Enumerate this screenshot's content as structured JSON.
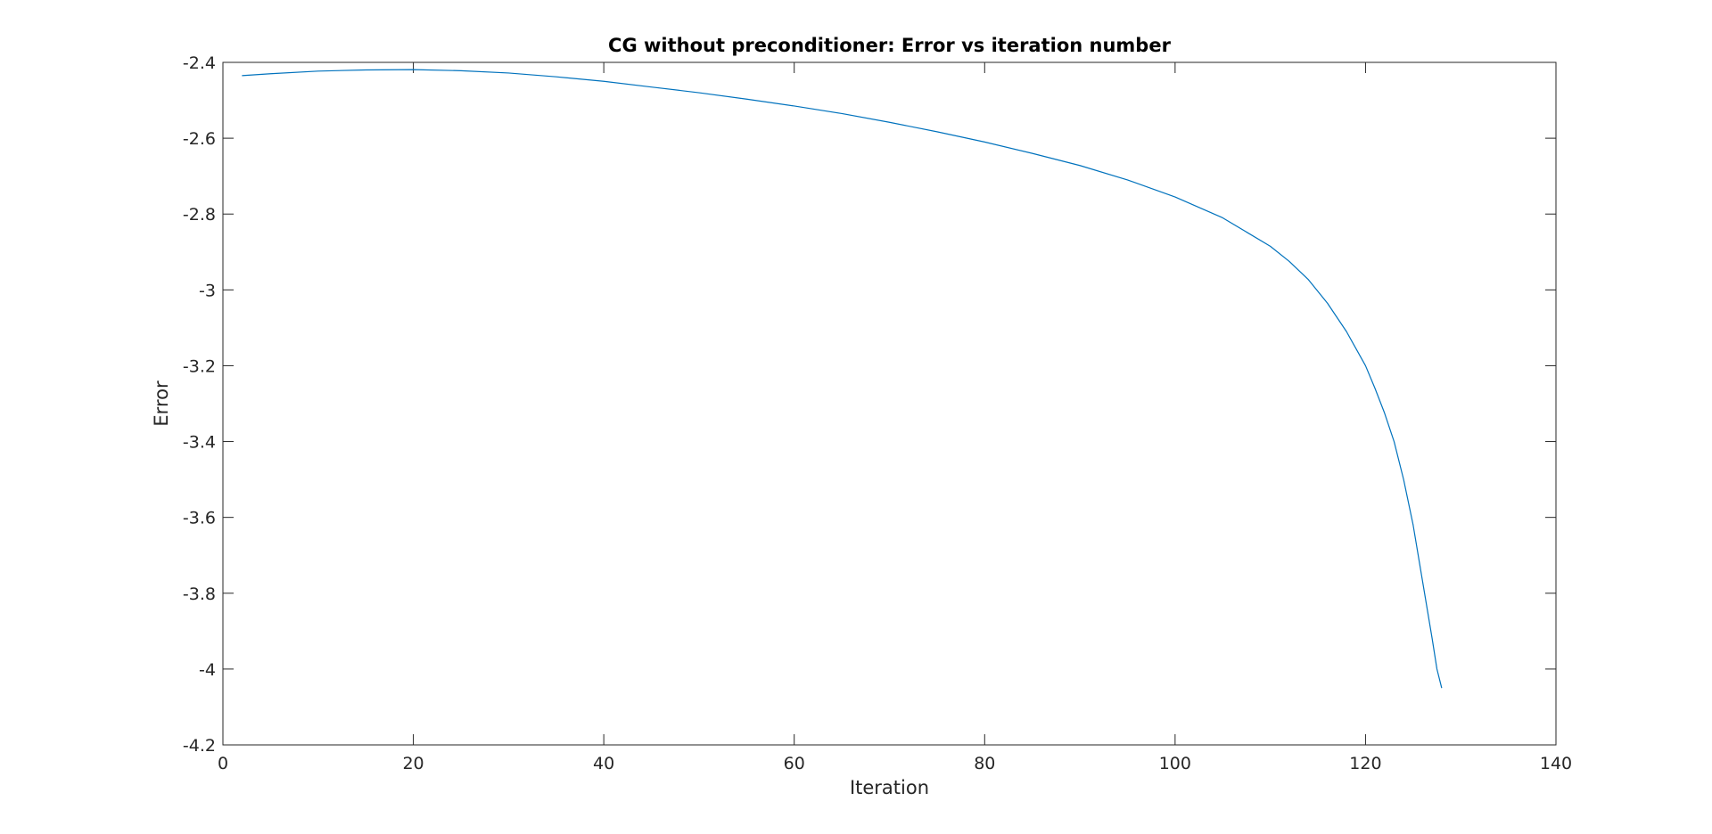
{
  "chart_data": {
    "type": "line",
    "title": "CG without preconditioner: Error vs iteration number",
    "xlabel": "Iteration",
    "ylabel": "Error",
    "xlim": [
      0,
      140
    ],
    "ylim": [
      -4.2,
      -2.4
    ],
    "xticks": [
      0,
      20,
      40,
      60,
      80,
      100,
      120,
      140
    ],
    "xtick_labels": [
      "0",
      "20",
      "40",
      "60",
      "80",
      "100",
      "120",
      "140"
    ],
    "yticks": [
      -4.2,
      -4,
      -3.8,
      -3.6,
      -3.4,
      -3.2,
      -3,
      -2.8,
      -2.6,
      -2.4
    ],
    "ytick_labels": [
      "-4.2",
      "-4",
      "-3.8",
      "-3.6",
      "-3.4",
      "-3.2",
      "-3",
      "-2.8",
      "-2.6",
      "-2.4"
    ],
    "grid": false,
    "line_color": "#0072BD",
    "series": [
      {
        "x": [
          2,
          5,
          10,
          15,
          20,
          25,
          30,
          35,
          40,
          45,
          50,
          55,
          60,
          65,
          70,
          75,
          80,
          85,
          90,
          95,
          100,
          105,
          110,
          112,
          114,
          116,
          118,
          120,
          121,
          122,
          123,
          124,
          125,
          126,
          127,
          127.5,
          128
        ],
        "y": [
          -2.435,
          -2.43,
          -2.423,
          -2.42,
          -2.419,
          -2.422,
          -2.428,
          -2.438,
          -2.45,
          -2.465,
          -2.48,
          -2.497,
          -2.515,
          -2.535,
          -2.558,
          -2.583,
          -2.61,
          -2.64,
          -2.672,
          -2.71,
          -2.755,
          -2.81,
          -2.885,
          -2.925,
          -2.973,
          -3.035,
          -3.11,
          -3.2,
          -3.26,
          -3.325,
          -3.4,
          -3.5,
          -3.62,
          -3.77,
          -3.92,
          -4.0,
          -4.05
        ]
      }
    ]
  }
}
